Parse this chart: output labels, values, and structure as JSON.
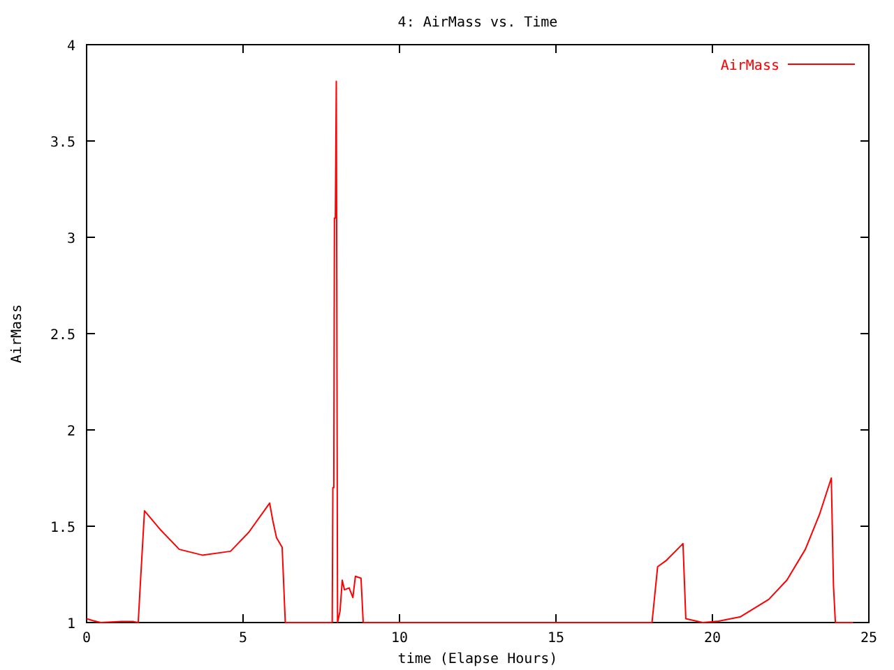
{
  "chart_data": {
    "type": "line",
    "title": "4: AirMass vs. Time",
    "xlabel": "time (Elapse Hours)",
    "ylabel": "AirMass",
    "xlim": [
      0,
      25
    ],
    "ylim": [
      1,
      4
    ],
    "xticks": [
      0,
      5,
      10,
      15,
      20,
      25
    ],
    "yticks": [
      1,
      1.5,
      2,
      2.5,
      3,
      3.5,
      4
    ],
    "grid": false,
    "legend": "top right",
    "series": [
      {
        "name": "AirMass",
        "color": "#ff0000",
        "x": [
          0,
          0.2,
          0.45,
          1.1,
          1.5,
          1.65,
          1.7,
          1.85,
          2.37,
          2.96,
          3.7,
          4.6,
          5.19,
          5.85,
          5.95,
          6.07,
          6.25,
          6.35,
          7.85,
          7.87,
          7.9,
          7.92,
          7.95,
          7.98,
          8.0,
          8.02,
          8.1,
          8.17,
          8.24,
          8.39,
          8.51,
          8.59,
          8.77,
          8.84,
          18.07,
          18.25,
          18.51,
          19.06,
          19.15,
          19.69,
          20.2,
          20.9,
          21.8,
          22.38,
          22.97,
          23.42,
          23.8,
          23.87,
          23.93,
          24.5
        ],
        "values": [
          1.02,
          1.01,
          1.0,
          1.005,
          1.005,
          1.0,
          1.15,
          1.58,
          1.48,
          1.38,
          1.35,
          1.37,
          1.47,
          1.62,
          1.53,
          1.44,
          1.39,
          1.0,
          1.0,
          1.7,
          1.7,
          3.1,
          3.1,
          3.81,
          2.41,
          1.0,
          1.06,
          1.22,
          1.17,
          1.18,
          1.13,
          1.24,
          1.23,
          1.0,
          1.0,
          1.29,
          1.32,
          1.41,
          1.02,
          1.0,
          1.007,
          1.03,
          1.12,
          1.22,
          1.38,
          1.56,
          1.75,
          1.19,
          1.0,
          1.0
        ]
      }
    ]
  }
}
